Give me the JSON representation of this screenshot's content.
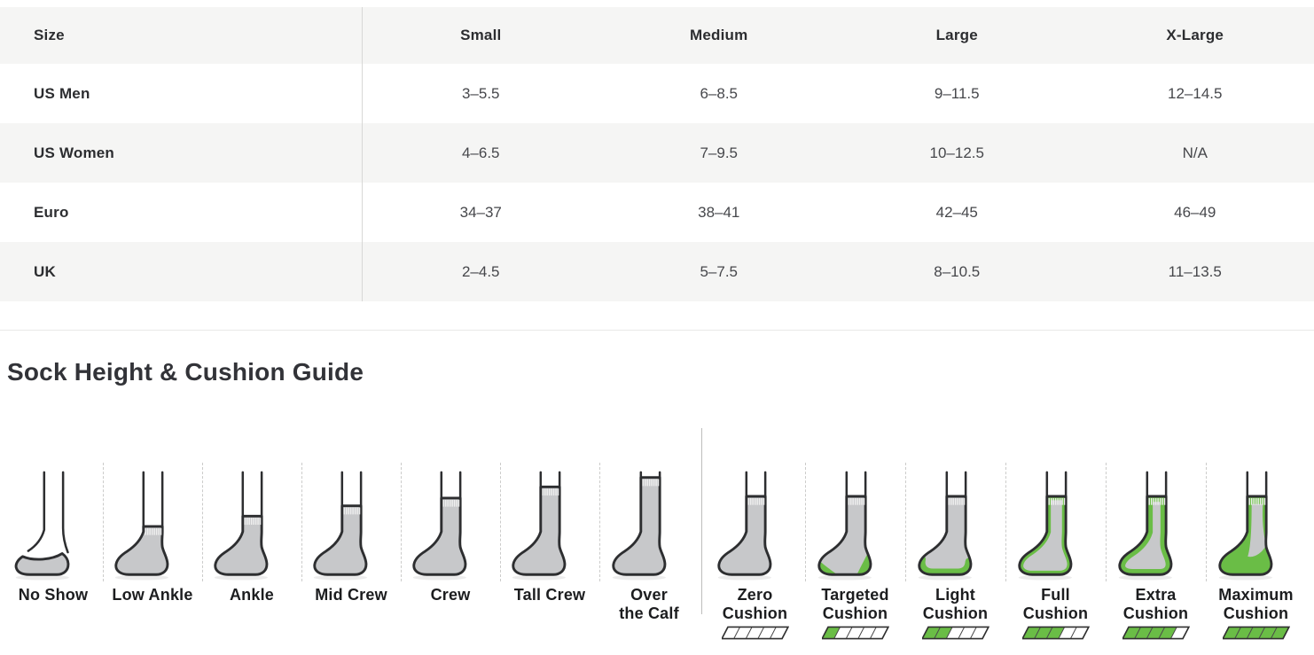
{
  "size_chart": {
    "columns": [
      "Size",
      "Small",
      "Medium",
      "Large",
      "X-Large"
    ],
    "rows": [
      {
        "label": "US Men",
        "values": [
          "3–5.5",
          "6–8.5",
          "9–11.5",
          "12–14.5"
        ]
      },
      {
        "label": "US Women",
        "values": [
          "4–6.5",
          "7–9.5",
          "10–12.5",
          "N/A"
        ]
      },
      {
        "label": "Euro",
        "values": [
          "34–37",
          "38–41",
          "42–45",
          "46–49"
        ]
      },
      {
        "label": "UK",
        "values": [
          "2–4.5",
          "5–7.5",
          "8–10.5",
          "11–13.5"
        ]
      }
    ]
  },
  "guide": {
    "title": "Sock Height & Cushion Guide",
    "heights": [
      {
        "label": "No Show",
        "style": "noshow",
        "icon": "no-show-sock-icon"
      },
      {
        "label": "Low Ankle",
        "style": "low",
        "icon": "low-ankle-sock-icon"
      },
      {
        "label": "Ankle",
        "style": "ankle",
        "icon": "ankle-sock-icon"
      },
      {
        "label": "Mid Crew",
        "style": "mid",
        "icon": "mid-crew-sock-icon"
      },
      {
        "label": "Crew",
        "style": "crew",
        "icon": "crew-sock-icon"
      },
      {
        "label": "Tall Crew",
        "style": "tall",
        "icon": "tall-crew-sock-icon"
      },
      {
        "label": "Over\nthe Calf",
        "style": "over",
        "icon": "over-the-calf-sock-icon"
      }
    ],
    "cushions": [
      {
        "label": "Zero\nCushion",
        "style": "zero",
        "level": 0,
        "icon": "zero-cushion-sock-icon"
      },
      {
        "label": "Targeted\nCushion",
        "style": "targeted",
        "level": 1,
        "icon": "targeted-cushion-sock-icon"
      },
      {
        "label": "Light\nCushion",
        "style": "light",
        "level": 2,
        "icon": "light-cushion-sock-icon"
      },
      {
        "label": "Full\nCushion",
        "style": "full",
        "level": 3,
        "icon": "full-cushion-sock-icon"
      },
      {
        "label": "Extra\nCushion",
        "style": "extra",
        "level": 4,
        "icon": "extra-cushion-sock-icon"
      },
      {
        "label": "Maximum\nCushion",
        "style": "max",
        "level": 5,
        "icon": "maximum-cushion-sock-icon"
      }
    ],
    "meter_segments": 5
  },
  "colors": {
    "accent_green": "#6abd46",
    "sock_gray": "#c7c8ca",
    "sock_outline": "#2d2e30",
    "row_stripe": "#f5f5f4"
  }
}
